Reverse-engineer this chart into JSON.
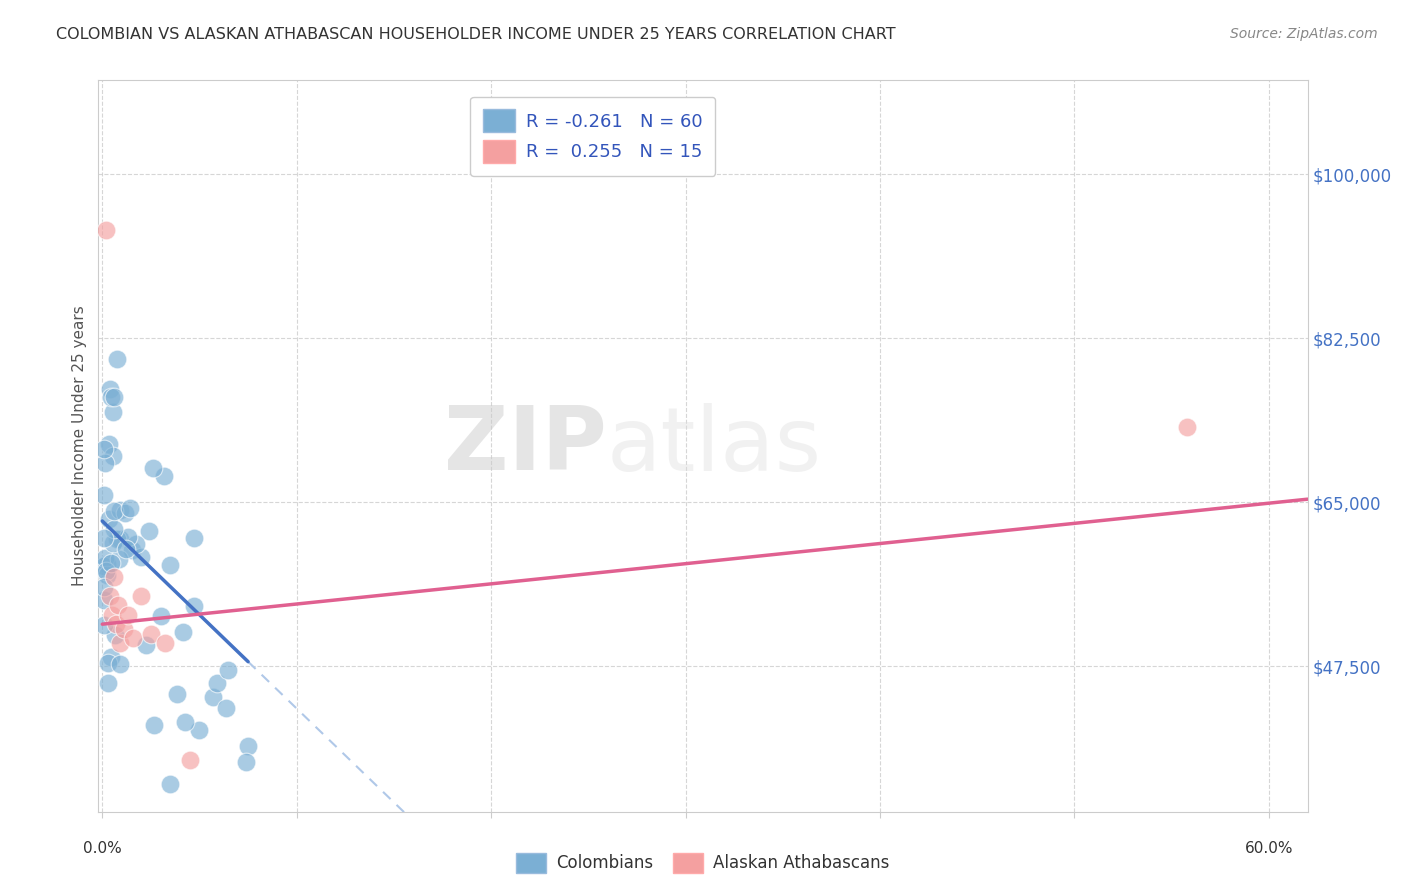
{
  "title": "COLOMBIAN VS ALASKAN ATHABASCAN HOUSEHOLDER INCOME UNDER 25 YEARS CORRELATION CHART",
  "source": "Source: ZipAtlas.com",
  "ylabel": "Householder Income Under 25 years",
  "ytick_labels": [
    "$47,500",
    "$65,000",
    "$82,500",
    "$100,000"
  ],
  "ytick_values": [
    47500,
    65000,
    82500,
    100000
  ],
  "ylim": [
    32000,
    110000
  ],
  "xlim": [
    -0.002,
    0.62
  ],
  "blue_color": "#7BAFD4",
  "pink_color": "#F4A0A0",
  "blue_line_color": "#4472C4",
  "pink_line_color": "#E06090",
  "dashed_line_color": "#B0C8E8",
  "background_color": "#FFFFFF",
  "grid_color": "#CCCCCC",
  "ytick_color": "#4472C4",
  "title_color": "#333333",
  "source_color": "#888888"
}
